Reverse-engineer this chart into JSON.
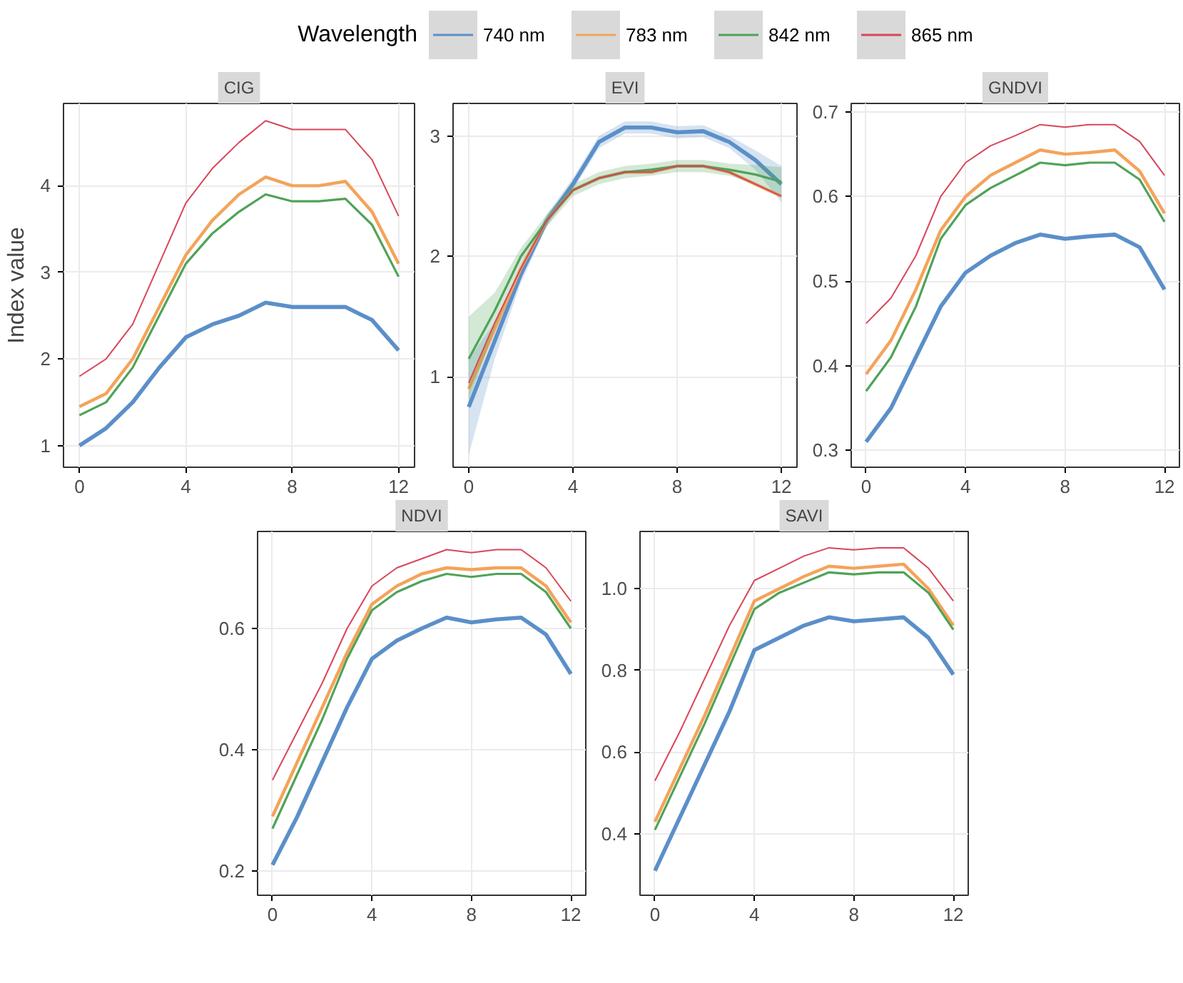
{
  "chart_data": [
    {
      "type": "line",
      "title": "CIG",
      "ylabel": "Index value",
      "legend_title": "Wavelength",
      "legend": "top",
      "grid": true,
      "x": [
        0,
        1,
        2,
        3,
        4,
        5,
        6,
        7,
        8,
        9,
        10,
        11,
        12
      ],
      "xlim": [
        -0.6,
        12.6
      ],
      "xticks": [
        0,
        4,
        8,
        12
      ],
      "ylim": [
        0.75,
        4.95
      ],
      "yticks": [
        1,
        2,
        3,
        4
      ],
      "series": [
        {
          "name": "740 nm",
          "color": "#5b8fc9",
          "values": [
            1.0,
            1.2,
            1.5,
            1.9,
            2.25,
            2.4,
            2.5,
            2.65,
            2.6,
            2.6,
            2.6,
            2.45,
            2.1
          ]
        },
        {
          "name": "783 nm",
          "color": "#f4a35a",
          "values": [
            1.45,
            1.6,
            2.0,
            2.6,
            3.2,
            3.6,
            3.9,
            4.1,
            4.0,
            4.0,
            4.05,
            3.7,
            3.1
          ]
        },
        {
          "name": "842 nm",
          "color": "#4fa357",
          "values": [
            1.35,
            1.5,
            1.9,
            2.5,
            3.1,
            3.45,
            3.7,
            3.9,
            3.82,
            3.82,
            3.85,
            3.55,
            2.95
          ]
        },
        {
          "name": "865 nm",
          "color": "#d9465a",
          "values": [
            1.8,
            2.0,
            2.4,
            3.1,
            3.8,
            4.2,
            4.5,
            4.75,
            4.65,
            4.65,
            4.65,
            4.3,
            3.65
          ]
        }
      ]
    },
    {
      "type": "line",
      "title": "EVI",
      "grid": true,
      "x": [
        0,
        1,
        2,
        3,
        4,
        5,
        6,
        7,
        8,
        9,
        10,
        11,
        12
      ],
      "xlim": [
        -0.6,
        12.6
      ],
      "xticks": [
        0,
        4,
        8,
        12
      ],
      "ylim": [
        0.25,
        3.27
      ],
      "yticks": [
        1,
        2,
        3
      ],
      "series": [
        {
          "color": "#5b8fc9",
          "values": [
            0.75,
            1.3,
            1.85,
            2.3,
            2.6,
            2.95,
            3.07,
            3.07,
            3.03,
            3.04,
            2.95,
            2.8,
            2.6
          ],
          "lower": [
            0.35,
            1.15,
            1.78,
            2.25,
            2.55,
            2.9,
            3.02,
            3.02,
            2.98,
            2.99,
            2.9,
            2.72,
            2.45
          ],
          "upper": [
            1.15,
            1.45,
            1.92,
            2.35,
            2.65,
            3.0,
            3.12,
            3.12,
            3.08,
            3.09,
            3.0,
            2.88,
            2.75
          ]
        },
        {
          "color": "#f4a35a",
          "values": [
            0.9,
            1.4,
            1.9,
            2.3,
            2.55,
            2.65,
            2.7,
            2.7,
            2.75,
            2.75,
            2.7,
            2.6,
            2.5
          ]
        },
        {
          "color": "#4fa357",
          "values": [
            1.15,
            1.55,
            2.0,
            2.3,
            2.55,
            2.65,
            2.7,
            2.72,
            2.75,
            2.75,
            2.72,
            2.68,
            2.62
          ],
          "lower": [
            0.8,
            1.4,
            1.93,
            2.25,
            2.5,
            2.6,
            2.65,
            2.67,
            2.7,
            2.7,
            2.67,
            2.6,
            2.5
          ],
          "upper": [
            1.5,
            1.7,
            2.07,
            2.35,
            2.6,
            2.7,
            2.75,
            2.77,
            2.8,
            2.8,
            2.77,
            2.76,
            2.74
          ]
        },
        {
          "color": "#d9465a",
          "values": [
            0.95,
            1.45,
            1.9,
            2.3,
            2.55,
            2.65,
            2.7,
            2.7,
            2.75,
            2.75,
            2.7,
            2.6,
            2.5
          ]
        }
      ]
    },
    {
      "type": "line",
      "title": "GNDVI",
      "grid": true,
      "x": [
        0,
        1,
        2,
        3,
        4,
        5,
        6,
        7,
        8,
        9,
        10,
        11,
        12
      ],
      "xlim": [
        -0.6,
        12.6
      ],
      "xticks": [
        0,
        4,
        8,
        12
      ],
      "ylim": [
        0.28,
        0.71
      ],
      "yticks": [
        0.3,
        0.4,
        0.5,
        0.6,
        0.7
      ],
      "series": [
        {
          "color": "#5b8fc9",
          "values": [
            0.31,
            0.35,
            0.41,
            0.47,
            0.51,
            0.53,
            0.545,
            0.555,
            0.55,
            0.553,
            0.555,
            0.54,
            0.49
          ]
        },
        {
          "color": "#f4a35a",
          "values": [
            0.39,
            0.43,
            0.49,
            0.56,
            0.6,
            0.625,
            0.64,
            0.655,
            0.65,
            0.652,
            0.655,
            0.63,
            0.58
          ]
        },
        {
          "color": "#4fa357",
          "values": [
            0.37,
            0.41,
            0.47,
            0.55,
            0.59,
            0.61,
            0.625,
            0.64,
            0.637,
            0.64,
            0.64,
            0.62,
            0.57
          ]
        },
        {
          "color": "#d9465a",
          "values": [
            0.45,
            0.48,
            0.53,
            0.6,
            0.64,
            0.66,
            0.672,
            0.685,
            0.682,
            0.685,
            0.685,
            0.665,
            0.625
          ]
        }
      ]
    },
    {
      "type": "line",
      "title": "NDVI",
      "grid": true,
      "x": [
        0,
        1,
        2,
        3,
        4,
        5,
        6,
        7,
        8,
        9,
        10,
        11,
        12
      ],
      "xlim": [
        -0.6,
        12.6
      ],
      "xticks": [
        0,
        4,
        8,
        12
      ],
      "ylim": [
        0.16,
        0.76
      ],
      "yticks": [
        0.2,
        0.4,
        0.6
      ],
      "series": [
        {
          "color": "#5b8fc9",
          "values": [
            0.21,
            0.29,
            0.38,
            0.47,
            0.55,
            0.58,
            0.6,
            0.618,
            0.61,
            0.615,
            0.618,
            0.59,
            0.525
          ]
        },
        {
          "color": "#f4a35a",
          "values": [
            0.29,
            0.38,
            0.47,
            0.56,
            0.64,
            0.67,
            0.69,
            0.7,
            0.697,
            0.7,
            0.7,
            0.67,
            0.61
          ]
        },
        {
          "color": "#4fa357",
          "values": [
            0.27,
            0.36,
            0.45,
            0.55,
            0.63,
            0.66,
            0.678,
            0.69,
            0.685,
            0.69,
            0.69,
            0.66,
            0.6
          ]
        },
        {
          "color": "#d9465a",
          "values": [
            0.35,
            0.43,
            0.51,
            0.6,
            0.67,
            0.7,
            0.715,
            0.73,
            0.725,
            0.73,
            0.73,
            0.7,
            0.645
          ]
        }
      ]
    },
    {
      "type": "line",
      "title": "SAVI",
      "grid": true,
      "x": [
        0,
        1,
        2,
        3,
        4,
        5,
        6,
        7,
        8,
        9,
        10,
        11,
        12
      ],
      "xlim": [
        -0.6,
        12.6
      ],
      "xticks": [
        0,
        4,
        8,
        12
      ],
      "ylim": [
        0.25,
        1.14
      ],
      "yticks": [
        {
          "value": 0.4,
          "label": "0.4"
        },
        {
          "value": 0.6,
          "label": "0.6"
        },
        {
          "value": 0.8,
          "label": "0.8"
        },
        {
          "value": 1.0,
          "label": "1.0"
        }
      ],
      "series": [
        {
          "color": "#5b8fc9",
          "values": [
            0.31,
            0.44,
            0.57,
            0.7,
            0.85,
            0.88,
            0.91,
            0.93,
            0.92,
            0.925,
            0.93,
            0.88,
            0.79
          ]
        },
        {
          "color": "#f4a35a",
          "values": [
            0.43,
            0.56,
            0.69,
            0.83,
            0.97,
            1.0,
            1.03,
            1.055,
            1.05,
            1.055,
            1.06,
            1.0,
            0.91
          ]
        },
        {
          "color": "#4fa357",
          "values": [
            0.41,
            0.54,
            0.67,
            0.81,
            0.95,
            0.99,
            1.015,
            1.04,
            1.035,
            1.04,
            1.04,
            0.99,
            0.9
          ]
        },
        {
          "color": "#d9465a",
          "values": [
            0.53,
            0.65,
            0.78,
            0.91,
            1.02,
            1.05,
            1.08,
            1.1,
            1.095,
            1.1,
            1.1,
            1.05,
            0.97
          ]
        }
      ]
    }
  ]
}
